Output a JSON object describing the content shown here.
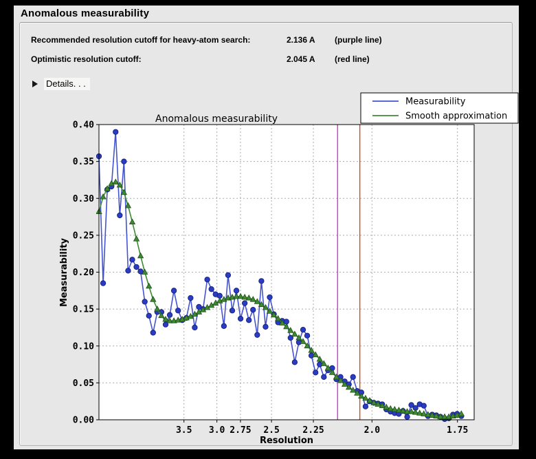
{
  "panel": {
    "title": "Anomalous measurability"
  },
  "header": {
    "rows": [
      {
        "label": "Recommended resolution cutoff for heavy-atom search:",
        "value": "2.136 A",
        "note": "(purple line)"
      },
      {
        "label": "Optimistic resolution cutoff:",
        "value": "2.045 A",
        "note": "(red line)"
      }
    ],
    "details_label": "Details. . ."
  },
  "chart_data": {
    "type": "line",
    "title": "Anomalous measurability",
    "xlabel": "Resolution",
    "ylabel": "Measurability",
    "grid": true,
    "x_axis": {
      "scale": "inverse_d_squared",
      "tick_labels": [
        "3.5",
        "3.0",
        "2.75",
        "2.5",
        "2.25",
        "2.0",
        "1.75"
      ],
      "tick_values": [
        3.5,
        3.0,
        2.75,
        2.5,
        2.25,
        2.0,
        1.75
      ],
      "domain_s2": [
        0.0055,
        0.3415
      ]
    },
    "y_axis": {
      "range": [
        0.0,
        0.4
      ],
      "tick_labels": [
        "0.00",
        "0.05",
        "0.10",
        "0.15",
        "0.20",
        "0.25",
        "0.30",
        "0.35",
        "0.40"
      ],
      "tick_values": [
        0.0,
        0.05,
        0.1,
        0.15,
        0.2,
        0.25,
        0.3,
        0.35,
        0.4
      ]
    },
    "points_s2_start": 0.0055,
    "points_s2_step": 0.00373,
    "series": [
      {
        "name": "Measurability",
        "marker": "circle",
        "line_color": "#4353cf",
        "marker_fill": "#2b3cc4",
        "marker_edge": "#141e7a",
        "values": [
          0.357,
          0.185,
          0.312,
          0.316,
          0.39,
          0.277,
          0.35,
          0.202,
          0.217,
          0.207,
          0.201,
          0.16,
          0.141,
          0.118,
          0.146,
          0.146,
          0.129,
          0.142,
          0.175,
          0.148,
          0.135,
          0.138,
          0.165,
          0.125,
          0.153,
          0.15,
          0.19,
          0.177,
          0.17,
          0.168,
          0.127,
          0.196,
          0.148,
          0.175,
          0.137,
          0.158,
          0.135,
          0.149,
          0.115,
          0.188,
          0.126,
          0.166,
          0.143,
          0.132,
          0.134,
          0.133,
          0.111,
          0.078,
          0.105,
          0.122,
          0.114,
          0.087,
          0.064,
          0.075,
          0.058,
          0.067,
          0.07,
          0.055,
          0.058,
          0.052,
          0.048,
          0.058,
          0.039,
          0.037,
          0.018,
          0.025,
          0.023,
          0.022,
          0.021,
          0.014,
          0.011,
          0.009,
          0.008,
          0.012,
          0.004,
          0.02,
          0.016,
          0.021,
          0.019,
          0.005,
          0.007,
          0.006,
          0.004,
          0.001,
          0.002,
          0.007,
          0.008,
          0.005
        ]
      },
      {
        "name": "Smooth approximation",
        "marker": "triangle-up",
        "line_color": "#3e8a33",
        "marker_fill": "#3e8a33",
        "marker_edge": "#1f4f17",
        "values": [
          0.282,
          0.302,
          0.313,
          0.32,
          0.322,
          0.318,
          0.308,
          0.29,
          0.268,
          0.245,
          0.222,
          0.2,
          0.181,
          0.163,
          0.15,
          0.141,
          0.136,
          0.134,
          0.134,
          0.135,
          0.136,
          0.138,
          0.14,
          0.143,
          0.146,
          0.149,
          0.152,
          0.155,
          0.158,
          0.161,
          0.163,
          0.165,
          0.166,
          0.167,
          0.167,
          0.166,
          0.165,
          0.163,
          0.16,
          0.156,
          0.152,
          0.147,
          0.142,
          0.137,
          0.131,
          0.126,
          0.121,
          0.116,
          0.111,
          0.106,
          0.1,
          0.094,
          0.088,
          0.082,
          0.076,
          0.07,
          0.064,
          0.058,
          0.053,
          0.048,
          0.044,
          0.04,
          0.036,
          0.032,
          0.029,
          0.026,
          0.023,
          0.021,
          0.019,
          0.017,
          0.015,
          0.014,
          0.013,
          0.012,
          0.011,
          0.011,
          0.01,
          0.009,
          0.008,
          0.007,
          0.006,
          0.005,
          0.004,
          0.004,
          0.004,
          0.005,
          0.006,
          0.008
        ]
      }
    ],
    "vlines": [
      {
        "name": "purple",
        "resolution": 2.136,
        "color": "#c83cc8"
      },
      {
        "name": "red",
        "resolution": 2.045,
        "color": "#d2491a"
      }
    ],
    "legend": {
      "position": "top-right",
      "entries": [
        "Measurability",
        "Smooth approximation"
      ]
    },
    "colors": {
      "plot_bg": "#ffffff",
      "figure_bg": "#e7e7e7",
      "grid": "#aaaaaa",
      "frame": "#000000"
    }
  }
}
